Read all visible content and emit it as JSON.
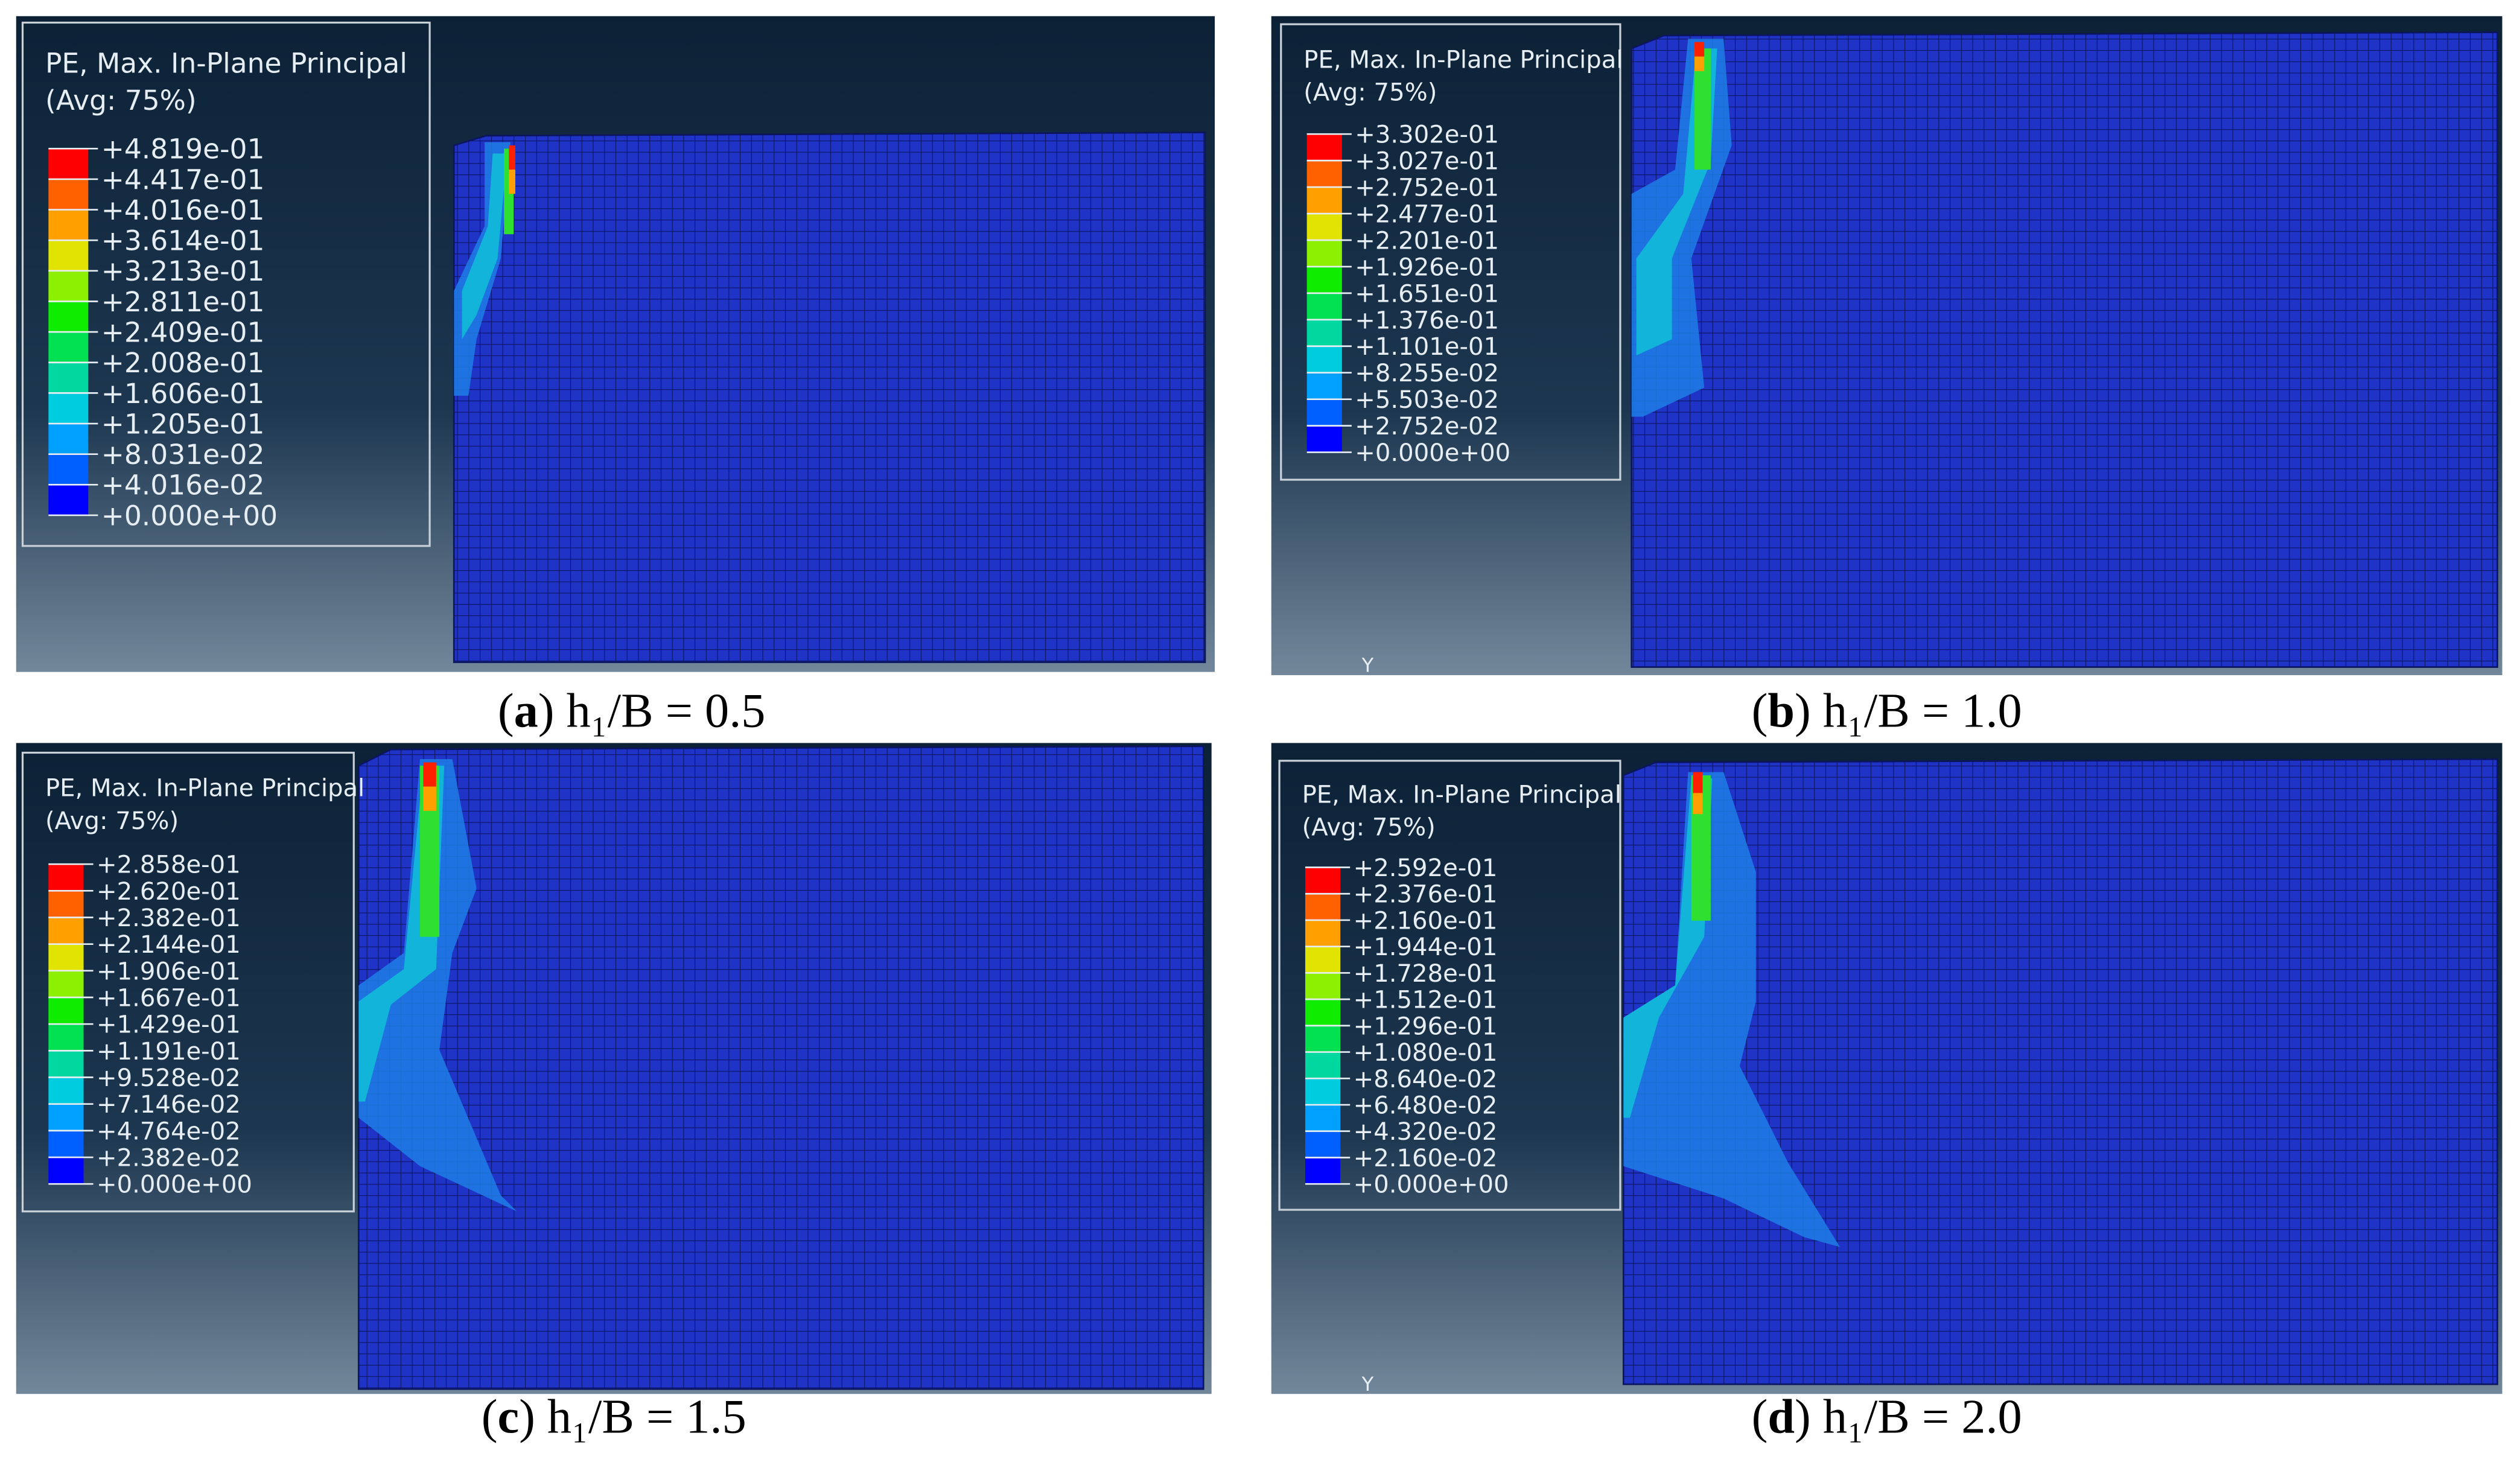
{
  "panels": [
    {
      "legend_title": "PE, Max. In-Plane Principal",
      "legend_avg": "(Avg: 75%)",
      "levels": [
        "+4.819e-01",
        "+4.417e-01",
        "+4.016e-01",
        "+3.614e-01",
        "+3.213e-01",
        "+2.811e-01",
        "+2.409e-01",
        "+2.008e-01",
        "+1.606e-01",
        "+1.205e-01",
        "+8.031e-02",
        "+4.016e-02",
        "+0.000e+00"
      ],
      "caption": {
        "prefix": "(",
        "label": "a",
        "text": ") h₁/B = 0.5"
      }
    },
    {
      "legend_title": "PE, Max. In-Plane Principal",
      "legend_avg": "(Avg: 75%)",
      "levels": [
        "+3.302e-01",
        "+3.027e-01",
        "+2.752e-01",
        "+2.477e-01",
        "+2.201e-01",
        "+1.926e-01",
        "+1.651e-01",
        "+1.376e-01",
        "+1.101e-01",
        "+8.255e-02",
        "+5.503e-02",
        "+2.752e-02",
        "+0.000e+00"
      ],
      "caption": {
        "prefix": "(",
        "label": "b",
        "text": ") h₁/B = 1.0"
      },
      "triad_label": "Y"
    },
    {
      "legend_title": "PE, Max. In-Plane Principal",
      "legend_avg": "(Avg: 75%)",
      "levels": [
        "+2.858e-01",
        "+2.620e-01",
        "+2.382e-01",
        "+2.144e-01",
        "+1.906e-01",
        "+1.667e-01",
        "+1.429e-01",
        "+1.191e-01",
        "+9.528e-02",
        "+7.146e-02",
        "+4.764e-02",
        "+2.382e-02",
        "+0.000e+00"
      ],
      "caption": {
        "prefix": "(",
        "label": "c",
        "text": ") h₁/B = 1.5"
      }
    },
    {
      "legend_title": "PE, Max. In-Plane Principal",
      "legend_avg": "(Avg: 75%)",
      "levels": [
        "+2.592e-01",
        "+2.376e-01",
        "+2.160e-01",
        "+1.944e-01",
        "+1.728e-01",
        "+1.512e-01",
        "+1.296e-01",
        "+1.080e-01",
        "+8.640e-02",
        "+6.480e-02",
        "+4.320e-02",
        "+2.160e-02",
        "+0.000e+00"
      ],
      "caption": {
        "prefix": "(",
        "label": "d",
        "text": ") h₁/B = 2.0"
      },
      "triad_label": "Y"
    }
  ]
}
